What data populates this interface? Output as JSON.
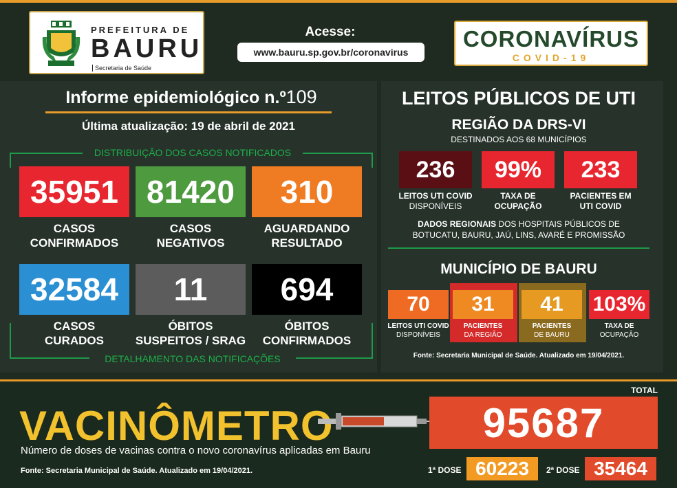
{
  "header": {
    "city_prefix": "PREFEITURA DE",
    "city_name": "BAURU",
    "department": "Secretaria de Saúde",
    "access_label": "Acesse:",
    "url": "www.bauru.sp.gov.br/coronavirus",
    "brand_title": "CORONAVÍRUS",
    "brand_sub": "COVID-19"
  },
  "report": {
    "title": "Informe epidemiológico n.º",
    "number": "109",
    "updated": "Última atualização: 19 de abril de 2021",
    "dist_label": "DISTRIBUIÇÃO DOS CASOS NOTIFICADOS",
    "detail_label": "DETALHAMENTO DAS NOTIFICAÇÕES",
    "cards": [
      {
        "value": "35951",
        "label1": "CASOS",
        "label2": "CONFIRMADOS",
        "color": "#e8262f"
      },
      {
        "value": "81420",
        "label1": "CASOS",
        "label2": "NEGATIVOS",
        "color": "#4d9a3f"
      },
      {
        "value": "310",
        "label1": "AGUARDANDO",
        "label2": "RESULTADO",
        "color": "#ef7b22"
      },
      {
        "value": "32584",
        "label1": "CASOS",
        "label2": "CURADOS",
        "color": "#2a8fd3"
      },
      {
        "value": "11",
        "label1": "ÓBITOS",
        "label2": "SUSPEITOS / SRAG",
        "color": "#5c5c5c"
      },
      {
        "value": "694",
        "label1": "ÓBITOS",
        "label2": "CONFIRMADOS",
        "color": "#000000"
      }
    ]
  },
  "uti": {
    "title": "LEITOS PÚBLICOS DE UTI",
    "region": "REGIÃO DA DRS-VI",
    "region_sub": "DESTINADOS AOS 68 MUNICÍPIOS",
    "region_cards": [
      {
        "value": "236",
        "label1": "LEITOS UTI COVID",
        "label2": "DISPONÍVEIS",
        "color": "#5a0f14"
      },
      {
        "value": "99%",
        "label1": "TAXA DE",
        "label2": "OCUPAÇÃO",
        "color": "#e8262f"
      },
      {
        "value": "233",
        "label1": "PACIENTES EM",
        "label2": "UTI COVID",
        "color": "#e8262f"
      }
    ],
    "regional_bold": "DADOS REGIONAIS",
    "regional_text": " DOS HOSPITAIS PÚBLICOS DE",
    "regional_text2": "BOTUCATU, BAURU, JAÚ, LINS, AVARÉ E PROMISSÃO",
    "city_title": "MUNICÍPIO DE BAURU",
    "city_cards": [
      {
        "value": "70",
        "label1": "LEITOS UTI COVID",
        "label2": "DISPONÍVEIS",
        "color": "#ef6a22"
      },
      {
        "value": "31",
        "label1": "PACIENTES",
        "label2": "DA REGIÃO",
        "color": "#ef8a22"
      },
      {
        "value": "41",
        "label1": "PACIENTES",
        "label2": "DE BAURU",
        "color": "#e69a22"
      },
      {
        "value": "103%",
        "label1": "TAXA DE",
        "label2": "OCUPAÇÃO",
        "color": "#e8262f"
      }
    ],
    "source": "Fonte: Secretaria Municipal de Saúde. Atualizado em 19/04/2021."
  },
  "vacina": {
    "title": "VACINÔMETRO",
    "desc": "Número de doses de vacinas contra o novo coronavírus aplicadas em Bauru",
    "source": "Fonte: Secretaria Municipal de Saúde. Atualizado em 19/04/2021.",
    "total_label": "TOTAL",
    "total": "95687",
    "dose1_label": "1ª DOSE",
    "dose1": "60223",
    "dose2_label": "2ª DOSE",
    "dose2": "35464"
  }
}
